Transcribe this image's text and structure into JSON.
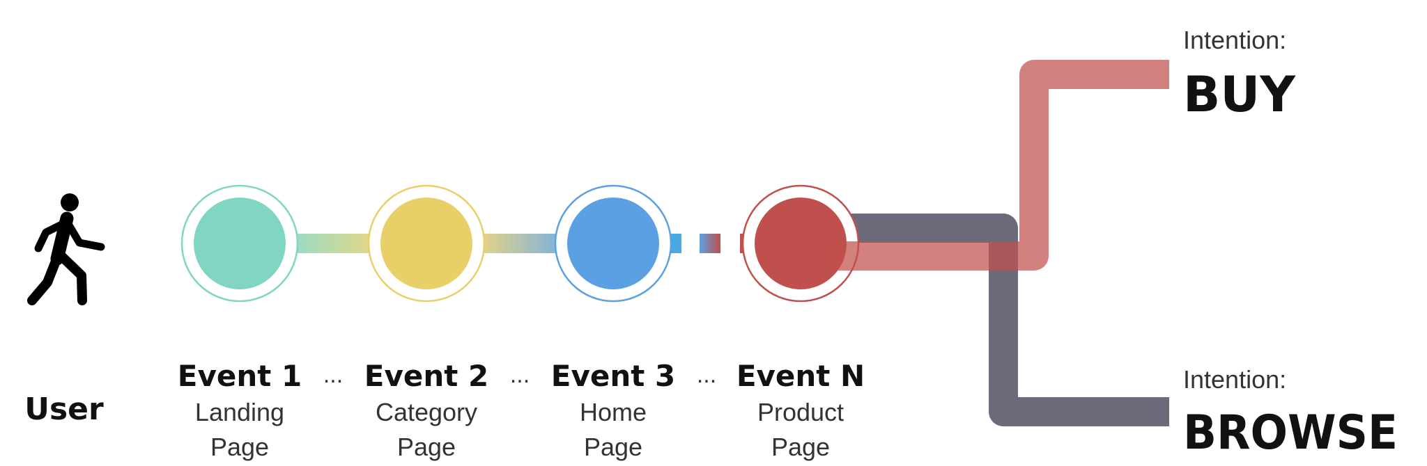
{
  "actor": {
    "label": "User",
    "icon": "person-walking-icon"
  },
  "events": [
    {
      "title": "Event 1",
      "line1": "Landing",
      "line2": "Page",
      "color": "#80d6c2"
    },
    {
      "title": "Event 2",
      "line1": "Category",
      "line2": "Page",
      "color": "#e9cf68"
    },
    {
      "title": "Event 3",
      "line1": "Home",
      "line2": "Page",
      "color": "#5ba0e3"
    },
    {
      "title": "Event N",
      "line1": "Product",
      "line2": "Page",
      "color": "#c0504d"
    }
  ],
  "ellipsis": "...",
  "intentions": [
    {
      "prefix": "Intention:",
      "label": "BUY",
      "color": "#d4827f"
    },
    {
      "prefix": "Intention:",
      "label": "BROWSE",
      "color": "#6a6a7b"
    }
  ]
}
